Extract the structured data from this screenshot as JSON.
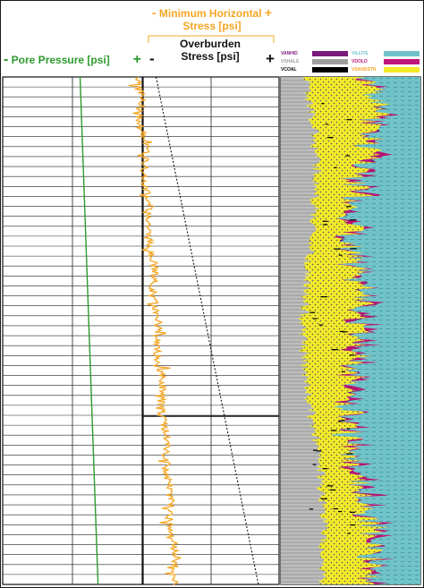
{
  "header": {
    "min_stress_minus": "-",
    "min_stress_title_1": "Minimum Horizontal",
    "min_stress_title_2": "Stress [psi]",
    "min_stress_plus": "+",
    "overburden_title_1": "Overburden",
    "overburden_title_2": "Stress [psi]",
    "overburden_minus": "-",
    "overburden_plus": "+",
    "pore_minus": "-",
    "pore_title": "Pore Pressure [psi]",
    "pore_plus": "+"
  },
  "legend": {
    "items": [
      {
        "label": "VANHID",
        "color": "#7a1a7a"
      },
      {
        "label": "VILLITE",
        "color": "#6fc3c9"
      },
      {
        "label": "VSHALE",
        "color": "#9e9e9e"
      },
      {
        "label": "VDOLO",
        "color": "#c0157a"
      },
      {
        "label": "VCOAL",
        "color": "#000000"
      },
      {
        "label": "VSANDSTN",
        "color": "#f2ea2a"
      }
    ]
  },
  "chart_data": [
    {
      "type": "line",
      "title": "",
      "panel": "pressure-and-stress tracks",
      "series": [
        {
          "name": "Pore Pressure [psi]",
          "color": "#2e9a2e",
          "x": [
            0.28,
            0.345
          ],
          "depth": [
            0.0,
            1.0
          ]
        },
        {
          "name": "Minimum Horizontal Stress [psi]",
          "color": "#f5a623",
          "x_trend": [
            0.49,
            0.625
          ],
          "depth_trend": [
            0.0,
            1.0
          ],
          "noise": "high-frequency"
        },
        {
          "name": "Overburden Stress [psi]",
          "color": "#111111",
          "style": "dashed",
          "x": [
            0.555,
            0.925
          ],
          "depth": [
            0.0,
            1.0
          ]
        }
      ],
      "grid": true,
      "axis_ticks_shown": false
    },
    {
      "type": "area",
      "title": "",
      "panel": "lithology volume track",
      "series": [
        {
          "name": "VSHALE",
          "color": "#b5b5b5"
        },
        {
          "name": "VSANDSTN",
          "color": "#f2ea2a"
        },
        {
          "name": "VDOLO",
          "color": "#c0157a"
        },
        {
          "name": "VANHID",
          "color": "#7a1a7a"
        },
        {
          "name": "VILLITE",
          "color": "#6fc3c9"
        },
        {
          "name": "VCOAL",
          "color": "#000000"
        }
      ],
      "x_range": [
        0,
        1
      ],
      "axis_ticks_shown": false
    }
  ]
}
